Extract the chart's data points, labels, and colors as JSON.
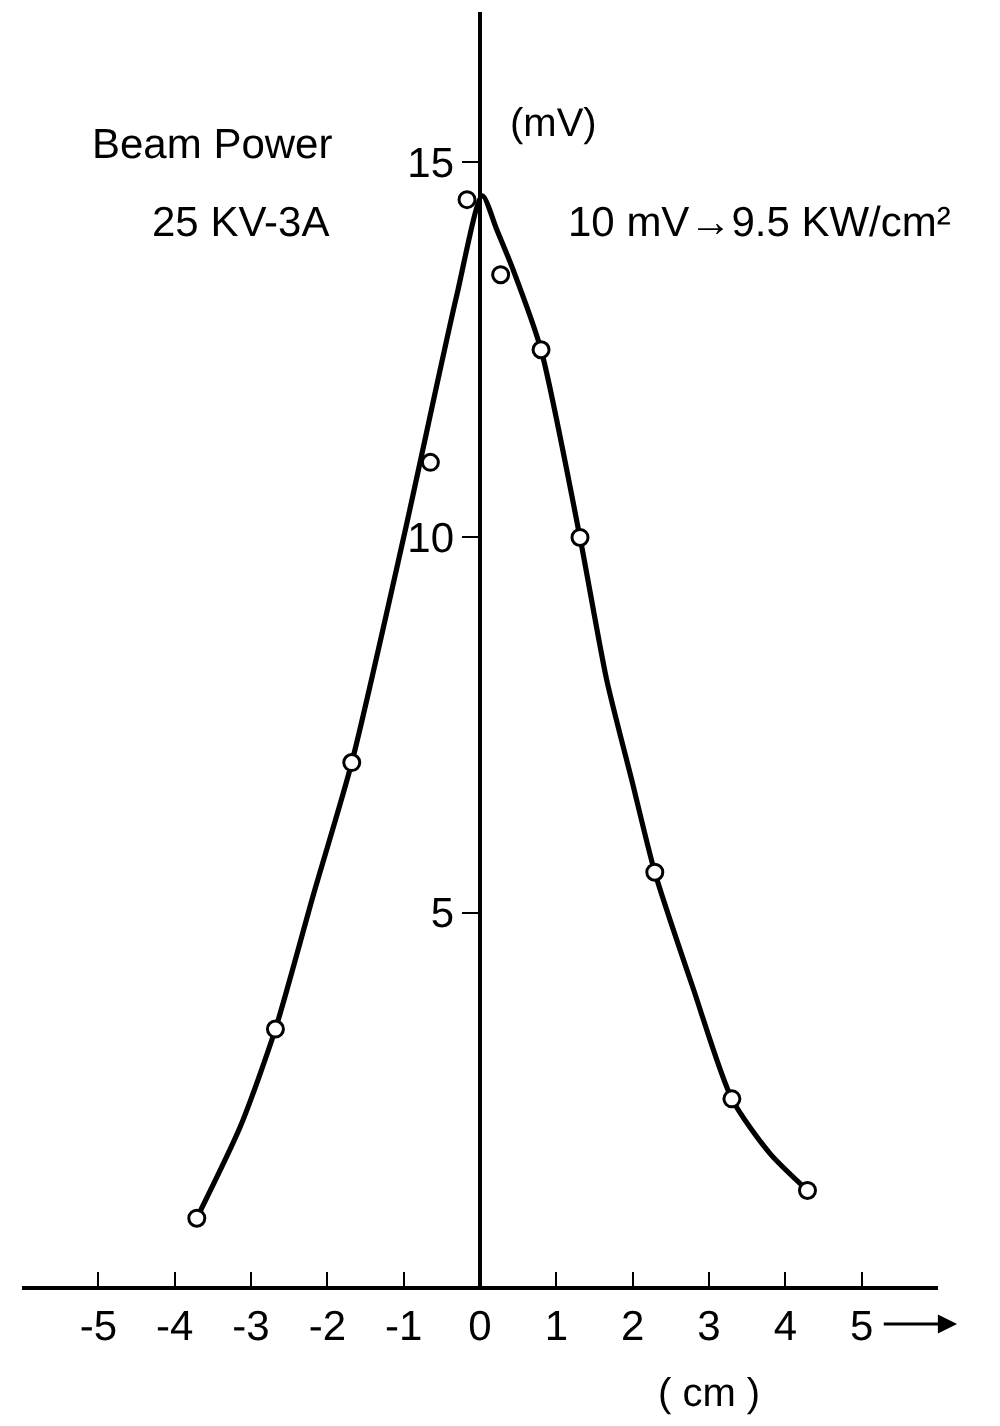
{
  "chart_data": {
    "type": "scatter",
    "xlabel": "( cm )",
    "ylabel": "(mV)",
    "annotations": [
      "Beam Power",
      "25 KV-3A",
      "10 mV→9.5 KW/cm²"
    ],
    "xlim": [
      -6,
      6
    ],
    "ylim": [
      0,
      17
    ],
    "xticks": [
      -5,
      -4,
      -3,
      -2,
      -1,
      0,
      1,
      2,
      3,
      4,
      5
    ],
    "yticks": [
      5,
      10,
      15
    ],
    "grid": false,
    "series": [
      {
        "type": "line",
        "color": "#000000",
        "marker": "none",
        "x": [
          -3.71,
          -3.14,
          -2.68,
          -2.18,
          -1.68,
          -1.0,
          -0.31,
          0.03,
          0.22,
          0.44,
          0.8,
          1.31,
          1.66,
          1.99,
          2.29,
          2.79,
          3.3,
          3.8,
          4.29
        ],
        "values": [
          0.93,
          2.15,
          3.45,
          5.25,
          7.0,
          10.0,
          13.2,
          14.55,
          14.1,
          13.55,
          12.5,
          10.0,
          8.1,
          6.76,
          5.54,
          4.0,
          2.52,
          1.79,
          1.3
        ]
      },
      {
        "color": "#000000",
        "marker": "circle",
        "x": [
          -3.71,
          -2.68,
          -1.68,
          -0.65,
          -0.17,
          0.27,
          0.8,
          1.31,
          2.29,
          3.3,
          4.29
        ],
        "values": [
          0.93,
          3.45,
          7.0,
          11.0,
          14.5,
          13.5,
          12.5,
          10.0,
          5.54,
          2.52,
          1.3
        ]
      }
    ]
  }
}
